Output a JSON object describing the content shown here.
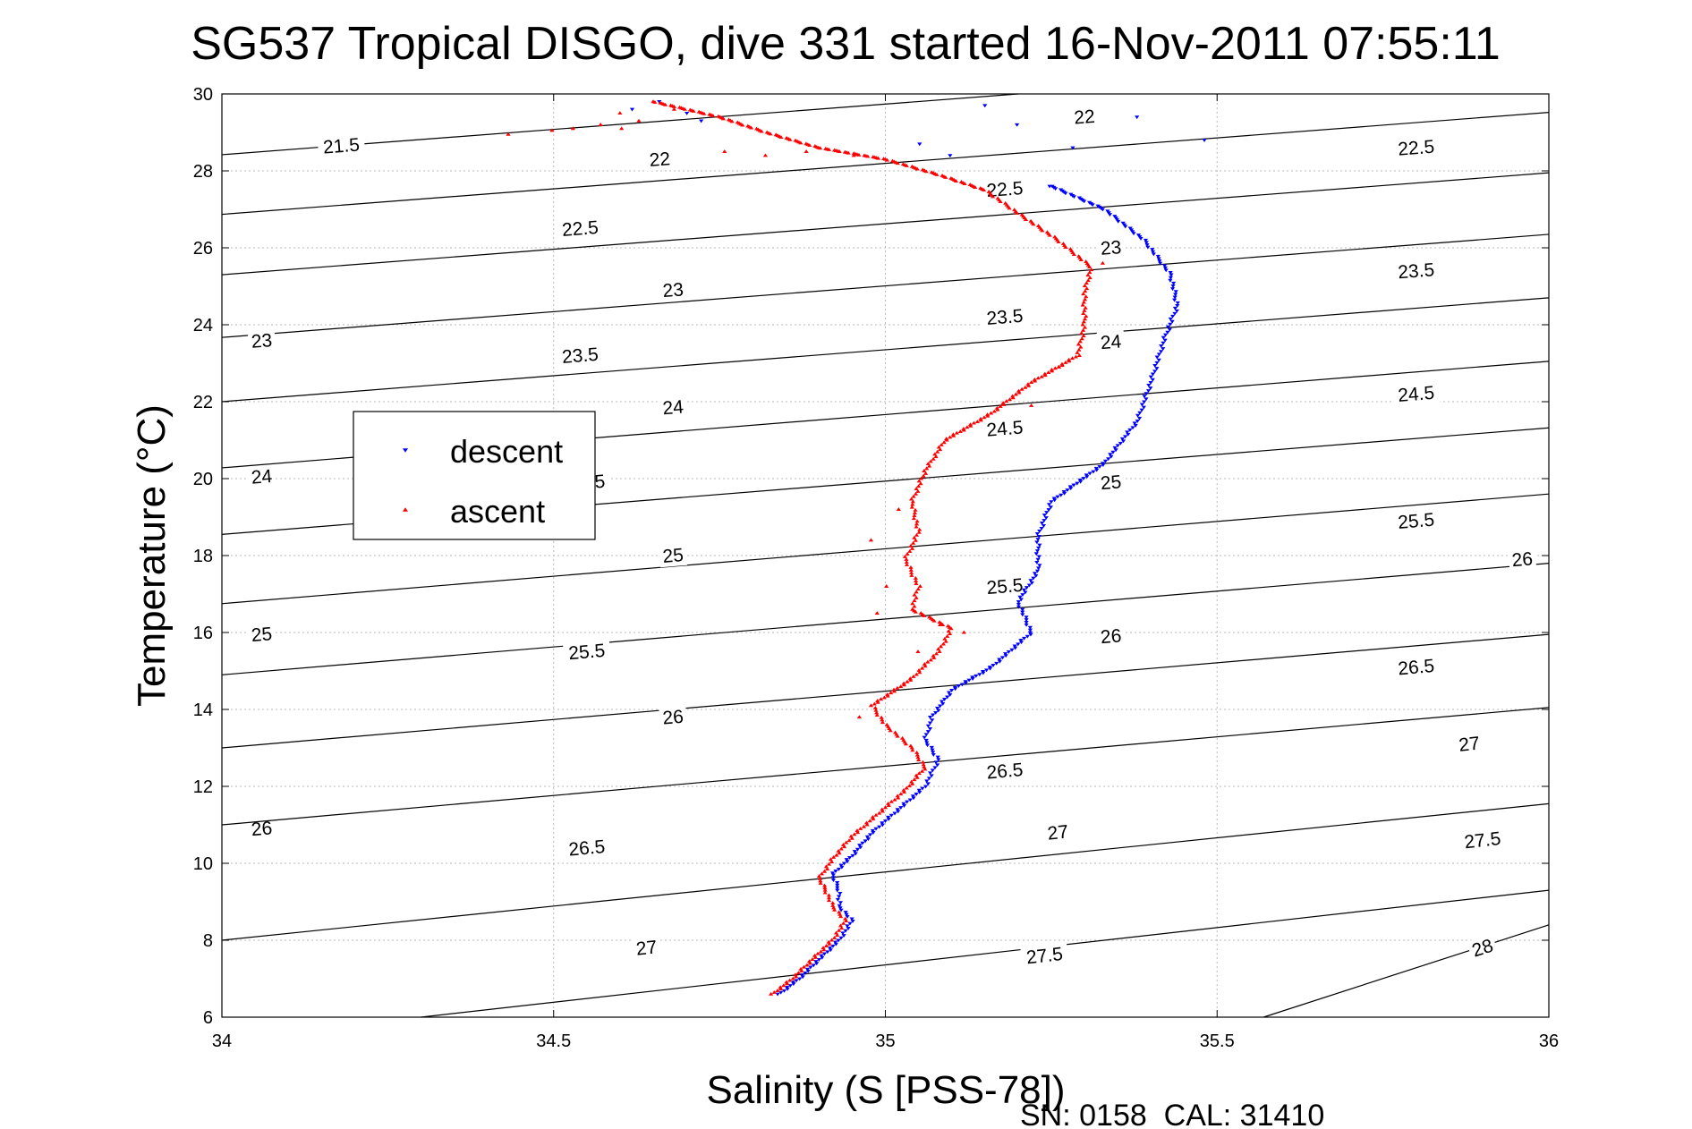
{
  "title": "SG537 Tropical DISGO, dive 331 started 16-Nov-2011 07:55:11",
  "footer": "SN: 0158  CAL: 31410",
  "chart_data": {
    "type": "scatter",
    "title": "SG537 Tropical DISGO, dive 331 started 16-Nov-2011 07:55:11",
    "xlabel": "Salinity (S [PSS-78])",
    "ylabel": "Temperature (°C)",
    "xlim": [
      34,
      36
    ],
    "ylim": [
      6,
      30
    ],
    "xticks": [
      34,
      34.5,
      35,
      35.5,
      36
    ],
    "xtick_labels": [
      "34",
      "34.5",
      "35",
      "35.5",
      "36"
    ],
    "yticks": [
      6,
      8,
      10,
      12,
      14,
      16,
      18,
      20,
      22,
      24,
      26,
      28,
      30
    ],
    "ytick_labels": [
      "6",
      "8",
      "10",
      "12",
      "14",
      "16",
      "18",
      "20",
      "22",
      "24",
      "26",
      "28",
      "30"
    ],
    "grid": true,
    "legend_placement": "center-left",
    "density_contours": [
      {
        "value": 21.5,
        "label": "21.5",
        "line": [
          [
            34.0,
            28.42
          ],
          [
            35.2,
            30.0
          ]
        ],
        "label_positions": [
          [
            34.18,
            28.65
          ]
        ]
      },
      {
        "value": 22.0,
        "label": "22",
        "line": [
          [
            34.0,
            26.87
          ],
          [
            36.0,
            29.52
          ]
        ],
        "label_positions": [
          [
            34.66,
            28.3
          ],
          [
            35.3,
            29.4
          ]
        ]
      },
      {
        "value": 22.5,
        "label": "22.5",
        "line": [
          [
            34.0,
            25.3
          ],
          [
            36.0,
            27.95
          ]
        ],
        "label_positions": [
          [
            34.54,
            26.5
          ],
          [
            35.18,
            27.52
          ],
          [
            35.8,
            28.6
          ]
        ]
      },
      {
        "value": 23.0,
        "label": "23",
        "line": [
          [
            34.0,
            23.67
          ],
          [
            36.0,
            26.35
          ]
        ],
        "label_positions": [
          [
            34.06,
            23.58
          ],
          [
            34.68,
            24.9
          ],
          [
            35.34,
            26.0
          ]
        ]
      },
      {
        "value": 23.5,
        "label": "23.5",
        "line": [
          [
            34.0,
            22.0
          ],
          [
            36.0,
            24.7
          ]
        ],
        "label_positions": [
          [
            34.54,
            23.2
          ],
          [
            35.18,
            24.2
          ],
          [
            35.8,
            25.4
          ]
        ]
      },
      {
        "value": 24.0,
        "label": "24",
        "line": [
          [
            34.0,
            20.28
          ],
          [
            36.0,
            23.05
          ]
        ],
        "label_positions": [
          [
            34.06,
            20.05
          ],
          [
            34.68,
            21.85
          ],
          [
            35.34,
            23.55
          ]
        ]
      },
      {
        "value": 24.5,
        "label": "24.5",
        "line": [
          [
            34.0,
            18.55
          ],
          [
            36.0,
            21.32
          ]
        ],
        "label_positions": [
          [
            34.55,
            19.9
          ],
          [
            35.18,
            21.3
          ],
          [
            35.8,
            22.2
          ]
        ]
      },
      {
        "value": 25.0,
        "label": "25",
        "line": [
          [
            34.0,
            16.75
          ],
          [
            36.0,
            19.6
          ]
        ],
        "label_positions": [
          [
            34.06,
            15.95
          ],
          [
            34.68,
            18.0
          ],
          [
            35.34,
            19.9
          ]
        ]
      },
      {
        "value": 25.5,
        "label": "25.5",
        "line": [
          [
            34.0,
            14.9
          ],
          [
            36.0,
            17.8
          ]
        ],
        "label_positions": [
          [
            34.55,
            15.5
          ],
          [
            35.18,
            17.2
          ],
          [
            35.8,
            18.9
          ]
        ]
      },
      {
        "value": 26.0,
        "label": "26",
        "line": [
          [
            34.0,
            13.0
          ],
          [
            36.0,
            15.95
          ]
        ],
        "label_positions": [
          [
            34.06,
            10.9
          ],
          [
            34.68,
            13.8
          ],
          [
            35.34,
            15.9
          ],
          [
            35.96,
            17.9
          ]
        ]
      },
      {
        "value": 26.5,
        "label": "26.5",
        "line": [
          [
            34.0,
            11.0
          ],
          [
            36.0,
            14.05
          ]
        ],
        "label_positions": [
          [
            34.55,
            10.4
          ],
          [
            35.18,
            12.4
          ],
          [
            35.8,
            15.1
          ]
        ]
      },
      {
        "value": 27.0,
        "label": "27",
        "line": [
          [
            34.0,
            8.0
          ],
          [
            36.0,
            11.55
          ]
        ],
        "label_positions": [
          [
            34.64,
            7.8
          ],
          [
            35.26,
            10.8
          ],
          [
            35.88,
            13.1
          ]
        ]
      },
      {
        "value": 27.5,
        "label": "27.5",
        "line": [
          [
            34.3,
            6.0
          ],
          [
            36.0,
            9.3
          ]
        ],
        "label_positions": [
          [
            35.24,
            7.6
          ],
          [
            35.9,
            10.6
          ]
        ]
      },
      {
        "value": 28.0,
        "label": "28",
        "line": [
          [
            35.57,
            6.0
          ],
          [
            36.0,
            8.4
          ]
        ],
        "label_positions": [
          [
            35.9,
            7.8
          ]
        ]
      }
    ],
    "series": [
      {
        "name": "descent",
        "color": "#0000ff",
        "marker": "triangle-down",
        "path": [
          [
            34.84,
            6.6
          ],
          [
            34.87,
            7.0
          ],
          [
            34.9,
            7.5
          ],
          [
            34.93,
            8.0
          ],
          [
            34.95,
            8.5
          ],
          [
            34.93,
            8.9
          ],
          [
            34.93,
            9.3
          ],
          [
            34.92,
            9.7
          ],
          [
            34.95,
            10.2
          ],
          [
            34.98,
            10.8
          ],
          [
            35.02,
            11.4
          ],
          [
            35.06,
            12.0
          ],
          [
            35.08,
            12.7
          ],
          [
            35.06,
            13.2
          ],
          [
            35.07,
            13.8
          ],
          [
            35.1,
            14.5
          ],
          [
            35.16,
            15.1
          ],
          [
            35.22,
            16.0
          ],
          [
            35.2,
            16.8
          ],
          [
            35.23,
            17.6
          ],
          [
            35.23,
            18.5
          ],
          [
            35.25,
            19.4
          ],
          [
            35.33,
            20.4
          ],
          [
            35.38,
            21.5
          ],
          [
            35.4,
            22.5
          ],
          [
            35.42,
            23.6
          ],
          [
            35.44,
            24.5
          ],
          [
            35.43,
            25.3
          ],
          [
            35.39,
            26.2
          ],
          [
            35.33,
            27.0
          ],
          [
            35.25,
            27.6
          ]
        ],
        "scatter": [
          [
            35.25,
            27.6
          ],
          [
            35.38,
            29.4
          ],
          [
            35.48,
            28.8
          ],
          [
            35.28,
            28.6
          ],
          [
            35.2,
            29.2
          ],
          [
            35.15,
            29.7
          ],
          [
            35.05,
            28.7
          ],
          [
            35.1,
            28.4
          ],
          [
            34.66,
            29.8
          ],
          [
            34.7,
            29.5
          ],
          [
            34.72,
            29.3
          ],
          [
            34.62,
            29.6
          ]
        ]
      },
      {
        "name": "ascent",
        "color": "#ff0000",
        "marker": "triangle-up",
        "path": [
          [
            34.83,
            6.6
          ],
          [
            34.86,
            7.0
          ],
          [
            34.89,
            7.5
          ],
          [
            34.92,
            8.0
          ],
          [
            34.94,
            8.5
          ],
          [
            34.92,
            8.9
          ],
          [
            34.91,
            9.3
          ],
          [
            34.9,
            9.6
          ],
          [
            34.92,
            10.1
          ],
          [
            34.95,
            10.7
          ],
          [
            34.99,
            11.3
          ],
          [
            35.03,
            11.9
          ],
          [
            35.06,
            12.5
          ],
          [
            35.04,
            13.0
          ],
          [
            35.0,
            13.6
          ],
          [
            34.98,
            14.1
          ],
          [
            35.04,
            14.8
          ],
          [
            35.08,
            15.5
          ],
          [
            35.1,
            16.1
          ],
          [
            35.04,
            16.6
          ],
          [
            35.05,
            17.2
          ],
          [
            35.03,
            17.9
          ],
          [
            35.05,
            18.6
          ],
          [
            35.04,
            19.4
          ],
          [
            35.06,
            20.2
          ],
          [
            35.09,
            21.0
          ],
          [
            35.16,
            21.7
          ],
          [
            35.22,
            22.5
          ],
          [
            35.29,
            23.2
          ],
          [
            35.3,
            24.0
          ],
          [
            35.3,
            24.8
          ],
          [
            35.31,
            25.5
          ],
          [
            35.26,
            26.2
          ],
          [
            35.2,
            26.9
          ],
          [
            35.15,
            27.5
          ],
          [
            35.08,
            27.9
          ],
          [
            35.0,
            28.3
          ],
          [
            34.9,
            28.6
          ],
          [
            34.82,
            29.0
          ],
          [
            34.75,
            29.4
          ],
          [
            34.65,
            29.8
          ]
        ],
        "scatter": [
          [
            34.43,
            28.95
          ],
          [
            34.5,
            29.05
          ],
          [
            34.53,
            29.1
          ],
          [
            34.57,
            29.2
          ],
          [
            34.6,
            29.1
          ],
          [
            34.63,
            29.3
          ],
          [
            34.6,
            29.5
          ],
          [
            34.68,
            29.6
          ],
          [
            34.76,
            28.5
          ],
          [
            34.82,
            28.4
          ],
          [
            34.88,
            28.5
          ],
          [
            34.95,
            28.4
          ],
          [
            34.98,
            18.4
          ],
          [
            35.02,
            19.2
          ],
          [
            35.0,
            17.2
          ],
          [
            34.99,
            16.5
          ],
          [
            35.05,
            15.5
          ],
          [
            34.96,
            13.8
          ],
          [
            35.08,
            16.2
          ],
          [
            35.12,
            16.0
          ],
          [
            35.22,
            21.9
          ],
          [
            35.26,
            22.9
          ],
          [
            35.33,
            25.6
          ]
        ]
      }
    ]
  }
}
